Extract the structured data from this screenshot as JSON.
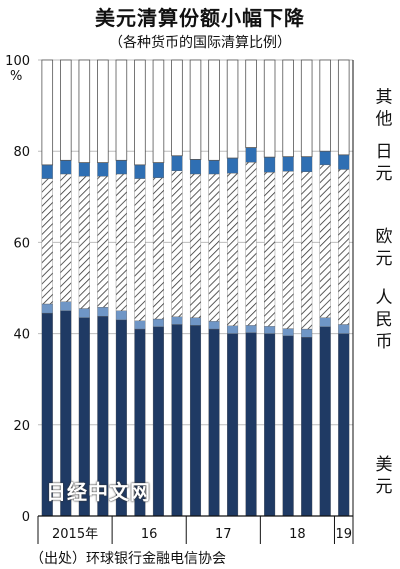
{
  "title": "美元清算份额小幅下降",
  "subtitle": "（各种货币的国际清算比例）",
  "source": "（出处）环球银行金融电信协会",
  "watermark": "日经中文网",
  "colors": {
    "usd": "#1f3a64",
    "cny": "#6f96c6",
    "eur_hatch": "#333333",
    "jpy": "#2f6fb3",
    "other": "#ffffff"
  },
  "chart_data": {
    "type": "bar",
    "stacked": true,
    "ylim": [
      0,
      100
    ],
    "yticks": [
      0,
      20,
      40,
      60,
      80,
      100
    ],
    "yunit": "%",
    "x_labels": [
      "2015年",
      "16",
      "17",
      "18",
      "19"
    ],
    "series": [
      {
        "name": "美元",
        "values": [
          44.5,
          45,
          43.5,
          43.8,
          43,
          41,
          41.5,
          42,
          41.8,
          41,
          40,
          40.2,
          40,
          39.5,
          39.2,
          41.5,
          40
        ]
      },
      {
        "name": "人民币",
        "values": [
          2,
          2,
          2,
          2,
          2,
          1.8,
          1.7,
          1.7,
          1.7,
          1.7,
          1.7,
          1.6,
          1.6,
          1.6,
          1.8,
          2.0,
          2.0
        ]
      },
      {
        "name": "欧元",
        "values": [
          27.5,
          28,
          29,
          28.7,
          30,
          31.2,
          31,
          32,
          31.5,
          32.3,
          33.5,
          35.8,
          33.8,
          34.5,
          34.5,
          33.5,
          34
        ]
      },
      {
        "name": "日元",
        "values": [
          3,
          3,
          3,
          3,
          3,
          3,
          3.3,
          3.3,
          3.2,
          3,
          3.3,
          3.2,
          3.3,
          3.2,
          3.3,
          3,
          3.2
        ]
      },
      {
        "name": "其他",
        "values": [
          23,
          22,
          22.5,
          22.5,
          22,
          23,
          22.5,
          21,
          21.8,
          22,
          21.5,
          19.2,
          21.3,
          21.2,
          21.2,
          20,
          20.8
        ]
      }
    ]
  }
}
